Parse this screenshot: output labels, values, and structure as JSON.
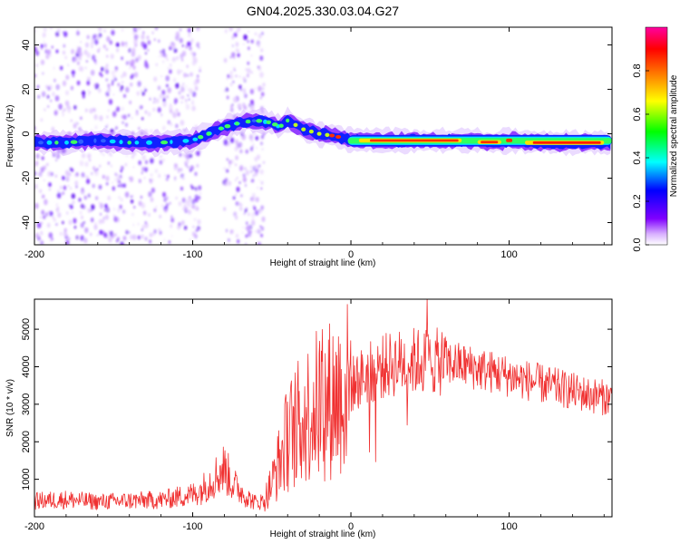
{
  "title": "GN04.2025.330.03.04.G27",
  "chart_data": [
    {
      "type": "heatmap",
      "xlabel": "Height of straight line (km)",
      "ylabel": "Frequency (Hz)",
      "xlim": [
        -200,
        165
      ],
      "ylim": [
        -50,
        48
      ],
      "xticks": [
        -200,
        -100,
        0,
        100
      ],
      "yticks": [
        -40,
        -20,
        0,
        20,
        40
      ],
      "colorbar": {
        "label": "Normalized spectral amplitude",
        "range": [
          0,
          1
        ],
        "ticks": [
          0.0,
          0.2,
          0.4,
          0.6,
          0.8
        ],
        "tick_labels": [
          "0.0",
          "0.2",
          "0.4",
          "0.6",
          "0.8"
        ],
        "colors": [
          "#ffffff",
          "#8000ff",
          "#0000ff",
          "#00ffff",
          "#00ff00",
          "#ffff00",
          "#ff8000",
          "#ff0000",
          "#ff00a0"
        ]
      },
      "ridge": {
        "x": [
          -200,
          -180,
          -160,
          -140,
          -120,
          -100,
          -90,
          -80,
          -70,
          -60,
          -50,
          -45,
          -40,
          -35,
          -30,
          -20,
          -10,
          -5,
          0,
          20,
          40,
          60,
          80,
          90,
          100,
          120,
          140,
          165
        ],
        "y": [
          -4,
          -4,
          -3,
          -4,
          -4,
          -3,
          0,
          3,
          5,
          6,
          5,
          3,
          6,
          4,
          2,
          0,
          -1,
          -2,
          -3,
          -3,
          -3,
          -3,
          -3,
          -4,
          -3,
          -4,
          -4,
          -4
        ]
      },
      "noise_regions_x": [
        [
          -200,
          -95
        ],
        [
          -80,
          -55
        ]
      ]
    },
    {
      "type": "line",
      "xlabel": "Height of straight line (km)",
      "ylabel": "SNR (10 * v/v)",
      "xlim": [
        -200,
        165
      ],
      "ylim": [
        0,
        5800
      ],
      "xticks": [
        -200,
        -100,
        0,
        100
      ],
      "yticks": [
        1000,
        2000,
        3000,
        4000,
        5000
      ],
      "color": "#f03030",
      "series": [
        {
          "name": "SNR",
          "x": [
            -200,
            -180,
            -160,
            -140,
            -120,
            -100,
            -95,
            -90,
            -85,
            -80,
            -75,
            -70,
            -65,
            -60,
            -55,
            -50,
            -45,
            -40,
            -35,
            -30,
            -25,
            -20,
            -15,
            -10,
            -5,
            0,
            10,
            20,
            30,
            40,
            50,
            60,
            70,
            80,
            90,
            100,
            110,
            120,
            130,
            140,
            150,
            165
          ],
          "y": [
            420,
            460,
            400,
            430,
            450,
            600,
            700,
            900,
            1100,
            1300,
            900,
            700,
            500,
            380,
            420,
            900,
            1500,
            2100,
            2400,
            2600,
            2900,
            3000,
            3100,
            3200,
            3350,
            3500,
            3800,
            4000,
            4100,
            4150,
            4150,
            4100,
            4050,
            3950,
            3850,
            3750,
            3650,
            3550,
            3450,
            3350,
            3250,
            3150
          ]
        }
      ]
    }
  ]
}
